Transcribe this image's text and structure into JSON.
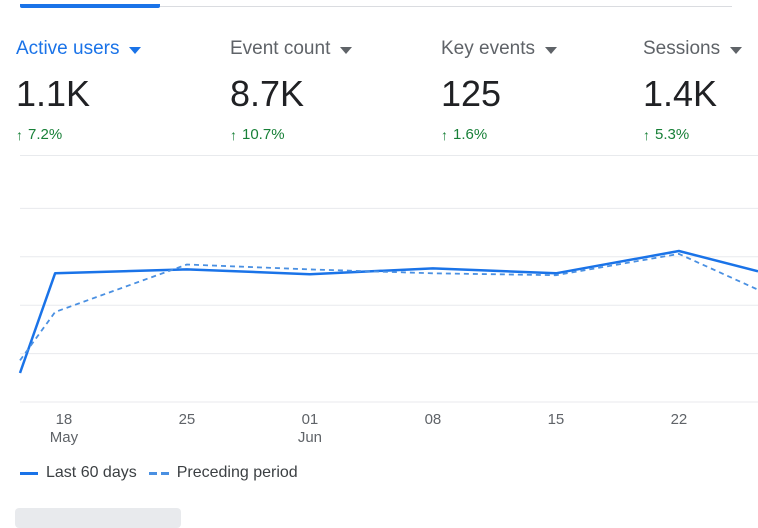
{
  "metrics": [
    {
      "label": "Active users",
      "value": "1.1K",
      "change": "7.2%",
      "active": true
    },
    {
      "label": "Event count",
      "value": "8.7K",
      "change": "10.7%",
      "active": false
    },
    {
      "label": "Key events",
      "value": "125",
      "change": "1.6%",
      "active": false
    },
    {
      "label": "Sessions",
      "value": "1.4K",
      "change": "5.3%",
      "active": false
    }
  ],
  "icons": {
    "dropdown": "caret-down-icon",
    "trend": "arrow-up-icon"
  },
  "colors": {
    "accent": "#1a73e8",
    "positive": "#188038",
    "preceding": "#4a90e2"
  },
  "chart_data": {
    "type": "line",
    "x_ticks": [
      {
        "day": "18",
        "month": "May"
      },
      {
        "day": "25",
        "month": ""
      },
      {
        "day": "01",
        "month": "Jun"
      },
      {
        "day": "08",
        "month": ""
      },
      {
        "day": "15",
        "month": ""
      },
      {
        "day": "22",
        "month": ""
      }
    ],
    "x_tick_positions": [
      18,
      25,
      32,
      39,
      46,
      53
    ],
    "x_range": [
      15.5,
      57.5
    ],
    "y_range": [
      0,
      25
    ],
    "gridlines": [
      0,
      5,
      10,
      15,
      20
    ],
    "series": [
      {
        "name": "Last 60 days",
        "style": "solid",
        "x": [
          15.5,
          17.5,
          25,
          32,
          39,
          46,
          53,
          57.5
        ],
        "y": [
          3,
          13.3,
          13.7,
          13.2,
          13.8,
          13.3,
          15.6,
          13.5
        ]
      },
      {
        "name": "Preceding period",
        "style": "dashed",
        "x": [
          15.5,
          17.5,
          25,
          32,
          39,
          46,
          53,
          57.5
        ],
        "y": [
          4.3,
          9.3,
          14.2,
          13.7,
          13.3,
          13.1,
          15.3,
          11.6
        ]
      }
    ]
  },
  "legend": {
    "current": "Last 60 days",
    "previous": "Preceding period"
  }
}
